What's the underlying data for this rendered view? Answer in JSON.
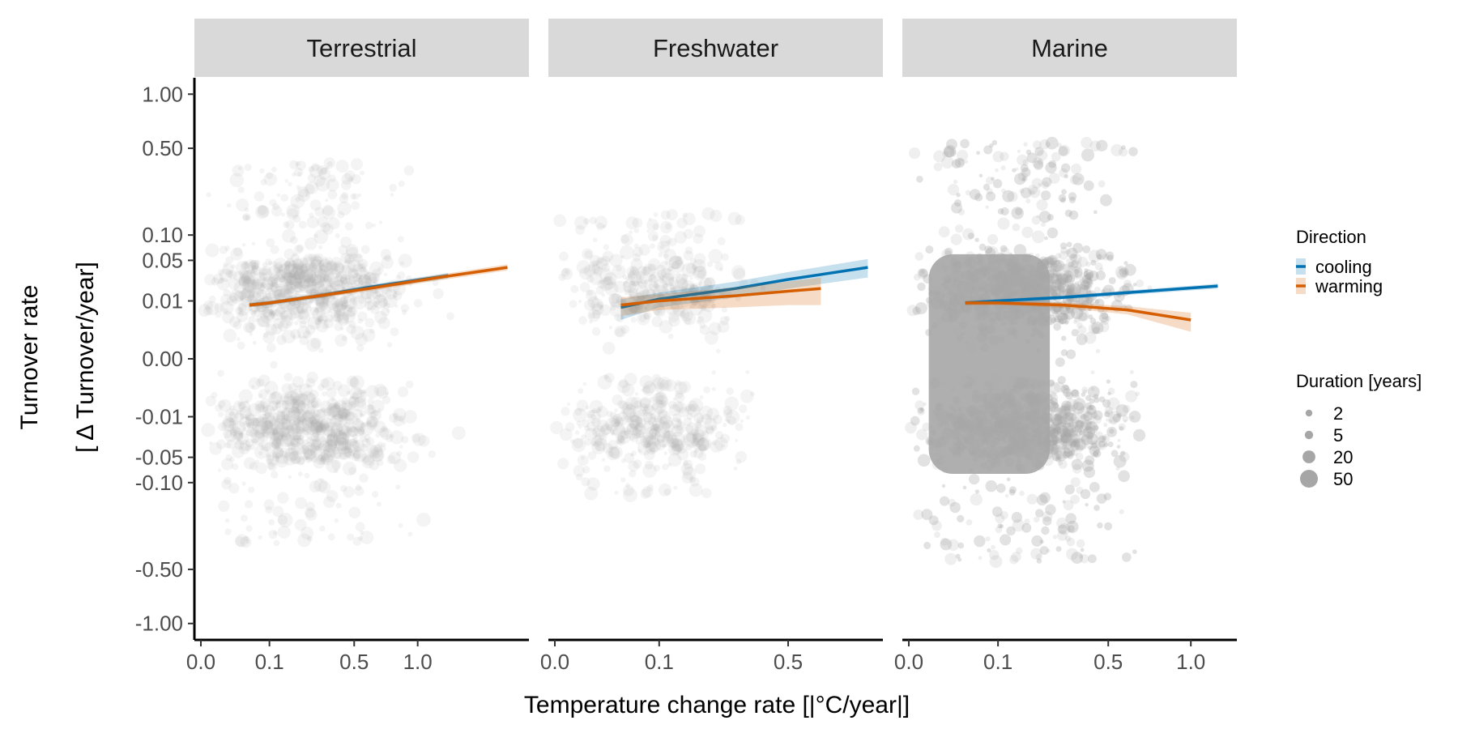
{
  "chart_data": {
    "type": "scatter",
    "panels": [
      {
        "title": "Terrestrial",
        "x_ticks": [
          "0.0",
          "0.1",
          "0.5",
          "1.0"
        ],
        "x_tick_values": [
          0.0,
          0.1,
          0.5,
          1.0
        ],
        "xlim": [
          -0.02,
          2.2
        ],
        "points": {
          "color": "#a6a6a6",
          "x_range": [
            0.0,
            1.6
          ],
          "y_range": [
            -0.5,
            1.0
          ]
        },
        "fits": [
          {
            "series": "cooling",
            "x": [
              0.05,
              0.1,
              0.3,
              0.6,
              1.3
            ],
            "y": [
              0.008,
              0.009,
              0.013,
              0.019,
              0.03
            ],
            "ci": [
              0.001,
              0.001,
              0.0015,
              0.002,
              0.003
            ]
          },
          {
            "series": "warming",
            "x": [
              0.05,
              0.1,
              0.3,
              0.6,
              1.2,
              2.0
            ],
            "y": [
              0.008,
              0.009,
              0.013,
              0.018,
              0.028,
              0.04
            ],
            "ci": [
              0.001,
              0.001,
              0.0015,
              0.002,
              0.003,
              0.004
            ]
          }
        ]
      },
      {
        "title": "Freshwater",
        "x_ticks": [
          "0.0",
          "0.1",
          "0.5"
        ],
        "x_tick_values": [
          0.0,
          0.1,
          0.5
        ],
        "xlim": [
          -0.005,
          0.95
        ],
        "points": {
          "color": "#a6a6a6",
          "x_range": [
            0.0,
            0.6
          ],
          "y_range": [
            -0.3,
            0.3
          ]
        },
        "fits": [
          {
            "series": "cooling",
            "x": [
              0.04,
              0.1,
              0.3,
              0.5,
              0.9
            ],
            "y": [
              0.007,
              0.011,
              0.018,
              0.026,
              0.04
            ],
            "ci": [
              0.004,
              0.004,
              0.006,
              0.008,
              0.012
            ]
          },
          {
            "series": "warming",
            "x": [
              0.04,
              0.1,
              0.3,
              0.5,
              0.65
            ],
            "y": [
              0.008,
              0.01,
              0.013,
              0.016,
              0.018
            ],
            "ci": [
              0.004,
              0.004,
              0.006,
              0.008,
              0.01
            ]
          }
        ]
      },
      {
        "title": "Marine",
        "x_ticks": [
          "0.0",
          "0.1",
          "0.5",
          "1.0"
        ],
        "x_tick_values": [
          0.0,
          0.1,
          0.5,
          1.0
        ],
        "xlim": [
          -0.01,
          1.3
        ],
        "points": {
          "color": "#a6a6a6",
          "x_range": [
            0.0,
            1.1
          ],
          "y_range": [
            -1.0,
            1.0
          ]
        },
        "fits": [
          {
            "series": "cooling",
            "x": [
              0.04,
              0.1,
              0.3,
              0.6,
              1.2
            ],
            "y": [
              0.009,
              0.01,
              0.012,
              0.015,
              0.02
            ],
            "ci": [
              0.001,
              0.001,
              0.0012,
              0.0015,
              0.002
            ]
          },
          {
            "series": "warming",
            "x": [
              0.04,
              0.1,
              0.3,
              0.6,
              1.0
            ],
            "y": [
              0.009,
              0.009,
              0.008,
              0.006,
              0.003
            ],
            "ci": [
              0.001,
              0.001,
              0.0012,
              0.0015,
              0.002
            ]
          }
        ]
      }
    ],
    "y_ticks": [
      "1.00",
      "0.50",
      "0.10",
      "0.05",
      "0.01",
      "0.00",
      "-0.01",
      "-0.05",
      "-0.10",
      "-0.50",
      "-1.00"
    ],
    "y_tick_values": [
      1.0,
      0.5,
      0.1,
      0.05,
      0.01,
      0.0,
      -0.01,
      -0.05,
      -0.1,
      -0.5,
      -1.0
    ],
    "ylim": [
      -1.2,
      1.2
    ],
    "xlabel": "Temperature change rate [|°C/year|]",
    "ylabel_line1": "Turnover rate",
    "ylabel_line2": "[ Δ Turnover/year]",
    "legend": {
      "direction_title": "Direction",
      "direction_items": [
        {
          "label": "cooling",
          "color": "#0072b2"
        },
        {
          "label": "warming",
          "color": "#d55e00"
        }
      ],
      "duration_title": "Duration [years]",
      "duration_items": [
        {
          "label": "2",
          "value": 2
        },
        {
          "label": "5",
          "value": 5
        },
        {
          "label": "20",
          "value": 20
        },
        {
          "label": "50",
          "value": 50
        }
      ],
      "placement": "right"
    },
    "colors": {
      "points": "#a6a6a6",
      "strip": "#d9d9d9",
      "cooling": "#0072b2",
      "warming": "#d55e00"
    },
    "grid": false
  }
}
